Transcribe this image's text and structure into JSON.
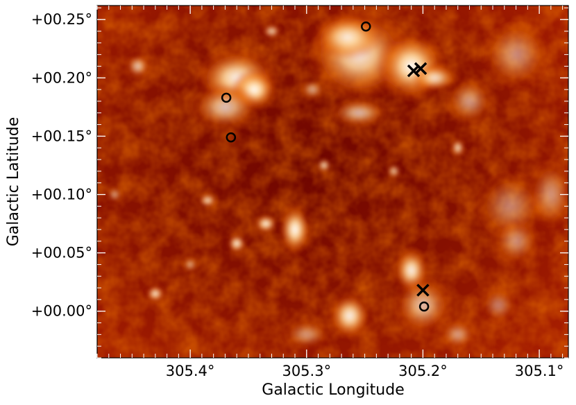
{
  "chart_data": {
    "type": "scatter",
    "subtype": "astronomical-image-with-markers",
    "colormap": "gist_heat",
    "xlabel": "Galactic Longitude",
    "ylabel": "Galactic Latitude",
    "xlim": [
      305.48,
      305.075
    ],
    "ylim": [
      -0.04,
      0.262
    ],
    "x_ticks": [
      {
        "value": 305.4,
        "label": "305.4°"
      },
      {
        "value": 305.3,
        "label": "305.3°"
      },
      {
        "value": 305.2,
        "label": "305.2°"
      },
      {
        "value": 305.1,
        "label": "305.1°"
      }
    ],
    "y_ticks": [
      {
        "value": 0.25,
        "label": "+00.25°"
      },
      {
        "value": 0.2,
        "label": "+00.20°"
      },
      {
        "value": 0.15,
        "label": "+00.15°"
      },
      {
        "value": 0.1,
        "label": "+00.10°"
      },
      {
        "value": 0.05,
        "label": "+00.05°"
      },
      {
        "value": 0.0,
        "label": "+00.00°"
      }
    ],
    "grid": false,
    "series": [
      {
        "marker": "circle",
        "color": "#000000",
        "points": [
          {
            "x": 305.249,
            "y": 0.244
          },
          {
            "x": 305.369,
            "y": 0.183
          },
          {
            "x": 305.365,
            "y": 0.149
          },
          {
            "x": 305.199,
            "y": 0.004
          }
        ]
      },
      {
        "marker": "cross",
        "color": "#000000",
        "points": [
          {
            "x": 305.208,
            "y": 0.206
          },
          {
            "x": 305.202,
            "y": 0.208
          },
          {
            "x": 305.2,
            "y": 0.018
          }
        ]
      }
    ],
    "emission_blobs": [
      {
        "x": 305.255,
        "y": 0.22,
        "rx": 0.045,
        "ry": 0.04,
        "level": 0.9
      },
      {
        "x": 305.21,
        "y": 0.21,
        "rx": 0.03,
        "ry": 0.03,
        "level": 1.0
      },
      {
        "x": 305.36,
        "y": 0.2,
        "rx": 0.035,
        "ry": 0.025,
        "level": 0.95
      },
      {
        "x": 305.345,
        "y": 0.19,
        "rx": 0.02,
        "ry": 0.018,
        "level": 1.0
      },
      {
        "x": 305.37,
        "y": 0.175,
        "rx": 0.03,
        "ry": 0.02,
        "level": 0.75
      },
      {
        "x": 305.265,
        "y": 0.235,
        "rx": 0.03,
        "ry": 0.02,
        "level": 0.85
      },
      {
        "x": 305.19,
        "y": 0.2,
        "rx": 0.02,
        "ry": 0.012,
        "level": 0.85
      },
      {
        "x": 305.16,
        "y": 0.18,
        "rx": 0.02,
        "ry": 0.02,
        "level": 0.55
      },
      {
        "x": 305.12,
        "y": 0.22,
        "rx": 0.03,
        "ry": 0.03,
        "level": 0.5
      },
      {
        "x": 305.255,
        "y": 0.17,
        "rx": 0.025,
        "ry": 0.012,
        "level": 0.7
      },
      {
        "x": 305.31,
        "y": 0.07,
        "rx": 0.014,
        "ry": 0.022,
        "level": 1.0
      },
      {
        "x": 305.335,
        "y": 0.075,
        "rx": 0.01,
        "ry": 0.008,
        "level": 0.95
      },
      {
        "x": 305.36,
        "y": 0.058,
        "rx": 0.008,
        "ry": 0.008,
        "level": 0.95
      },
      {
        "x": 305.385,
        "y": 0.095,
        "rx": 0.008,
        "ry": 0.006,
        "level": 0.85
      },
      {
        "x": 305.263,
        "y": -0.004,
        "rx": 0.018,
        "ry": 0.02,
        "level": 0.95
      },
      {
        "x": 305.21,
        "y": 0.035,
        "rx": 0.015,
        "ry": 0.02,
        "level": 0.95
      },
      {
        "x": 305.2,
        "y": 0.005,
        "rx": 0.025,
        "ry": 0.025,
        "level": 0.7
      },
      {
        "x": 305.17,
        "y": -0.02,
        "rx": 0.015,
        "ry": 0.012,
        "level": 0.55
      },
      {
        "x": 305.43,
        "y": 0.015,
        "rx": 0.008,
        "ry": 0.007,
        "level": 0.9
      },
      {
        "x": 305.445,
        "y": 0.21,
        "rx": 0.01,
        "ry": 0.01,
        "level": 0.75
      },
      {
        "x": 305.125,
        "y": 0.09,
        "rx": 0.03,
        "ry": 0.03,
        "level": 0.45
      },
      {
        "x": 305.09,
        "y": 0.1,
        "rx": 0.02,
        "ry": 0.03,
        "level": 0.5
      },
      {
        "x": 305.12,
        "y": 0.06,
        "rx": 0.02,
        "ry": 0.02,
        "level": 0.5
      },
      {
        "x": 305.285,
        "y": 0.125,
        "rx": 0.006,
        "ry": 0.006,
        "level": 0.85
      },
      {
        "x": 305.4,
        "y": 0.04,
        "rx": 0.006,
        "ry": 0.006,
        "level": 0.6
      },
      {
        "x": 305.465,
        "y": 0.1,
        "rx": 0.006,
        "ry": 0.006,
        "level": 0.6
      },
      {
        "x": 305.17,
        "y": 0.14,
        "rx": 0.006,
        "ry": 0.008,
        "level": 0.85
      },
      {
        "x": 305.33,
        "y": 0.24,
        "rx": 0.008,
        "ry": 0.006,
        "level": 0.8
      },
      {
        "x": 305.295,
        "y": 0.19,
        "rx": 0.01,
        "ry": 0.008,
        "level": 0.6
      },
      {
        "x": 305.225,
        "y": 0.12,
        "rx": 0.006,
        "ry": 0.006,
        "level": 0.75
      },
      {
        "x": 305.3,
        "y": -0.02,
        "rx": 0.02,
        "ry": 0.012,
        "level": 0.5
      },
      {
        "x": 305.135,
        "y": 0.005,
        "rx": 0.015,
        "ry": 0.015,
        "level": 0.45
      }
    ]
  }
}
